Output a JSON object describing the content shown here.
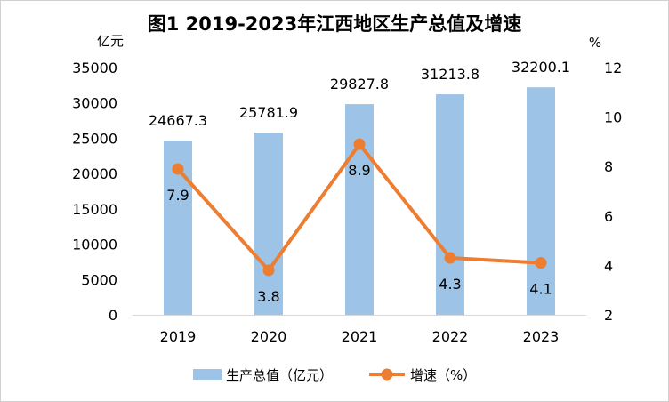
{
  "title": "图1  2019-2023年江西地区生产总值及增速",
  "chart_data": {
    "type": "bar+line",
    "title": "图1  2019-2023年江西地区生产总值及增速",
    "categories": [
      "2019",
      "2020",
      "2021",
      "2022",
      "2023"
    ],
    "y_left": {
      "label": "亿元",
      "min": 0,
      "max": 35000,
      "ticks": [
        0,
        5000,
        10000,
        15000,
        20000,
        25000,
        30000,
        35000
      ]
    },
    "y_right": {
      "label": "%",
      "min": 2,
      "max": 12,
      "ticks": [
        2,
        4,
        6,
        8,
        10,
        12
      ]
    },
    "series": [
      {
        "name": "生产总值（亿元）",
        "type": "bar",
        "axis": "left",
        "color": "#9dc3e6",
        "values": [
          24667.3,
          25781.9,
          29827.8,
          31213.8,
          32200.1
        ],
        "labels": [
          "24667.3",
          "25781.9",
          "29827.8",
          "31213.8",
          "32200.1"
        ]
      },
      {
        "name": "增速（%）",
        "type": "line",
        "axis": "right",
        "color": "#ed7d31",
        "values": [
          7.9,
          3.8,
          8.9,
          4.3,
          4.1
        ],
        "labels": [
          "7.9",
          "3.8",
          "8.9",
          "4.3",
          "4.1"
        ]
      }
    ],
    "legend_position": "bottom",
    "grid": false
  }
}
